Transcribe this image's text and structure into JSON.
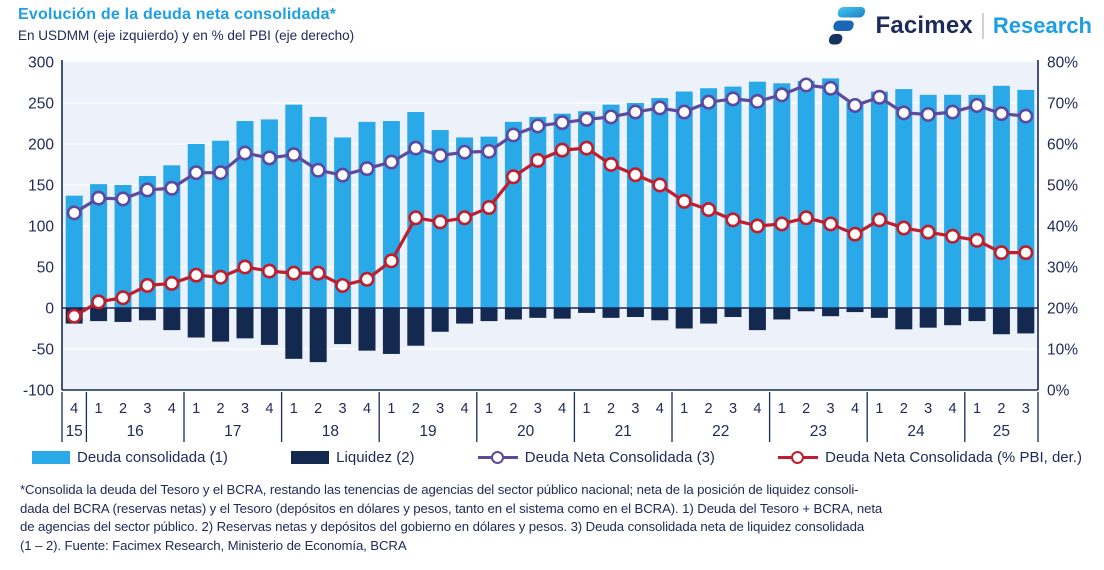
{
  "header": {
    "title": "Evolución de la deuda neta consolidada*",
    "subtitle": "En USDMM (eje izquierdo) y en % del PBI (eje derecho)",
    "brand": {
      "name": "Facimex",
      "division": "Research"
    }
  },
  "colors": {
    "bar_light_blue": "#29A9E8",
    "bar_navy": "#14294F",
    "line_purple": "#5B4AA0",
    "line_red": "#BE1E2D",
    "title_blue": "#1E9FE4",
    "text_navy": "#202A5B",
    "plot_background": "#EDF2FA",
    "gridline": "#FFFFFF",
    "axis_line": "#16295B"
  },
  "chart_data": {
    "type": "bar",
    "subtype": "combo bar + line, dual axis",
    "title": "Evolución de la deuda neta consolidada",
    "xlabel": "",
    "ylabel_left": "USDMM",
    "ylabel_right": "% del PBI",
    "grid": "horizontal white gridlines on light-blue plot background",
    "legend_position": "bottom",
    "left_axis": {
      "range": [
        -100,
        300
      ],
      "ticks": [
        300,
        250,
        200,
        150,
        100,
        50,
        0,
        -50,
        -100
      ]
    },
    "right_axis": {
      "range": [
        0,
        80
      ],
      "ticks": [
        "80%",
        "70%",
        "60%",
        "50%",
        "40%",
        "30%",
        "20%",
        "10%",
        "0%"
      ]
    },
    "quarter_labels": [
      "4",
      "1",
      "2",
      "3",
      "4",
      "1",
      "2",
      "3",
      "4",
      "1",
      "2",
      "3",
      "4",
      "1",
      "2",
      "3",
      "4",
      "1",
      "2",
      "3",
      "4",
      "1",
      "2",
      "3",
      "4",
      "1",
      "2",
      "3",
      "4",
      "1",
      "2",
      "3",
      "4",
      "1",
      "2",
      "3",
      "4",
      "1",
      "2",
      "3"
    ],
    "year_groups": [
      {
        "label": "15",
        "count": 1
      },
      {
        "label": "16",
        "count": 4
      },
      {
        "label": "17",
        "count": 4
      },
      {
        "label": "18",
        "count": 4
      },
      {
        "label": "19",
        "count": 4
      },
      {
        "label": "20",
        "count": 4
      },
      {
        "label": "21",
        "count": 4
      },
      {
        "label": "22",
        "count": 4
      },
      {
        "label": "23",
        "count": 4
      },
      {
        "label": "24",
        "count": 4
      },
      {
        "label": "25",
        "count": 3
      }
    ],
    "series": [
      {
        "name": "Deuda consolidada (1)",
        "type": "bar",
        "axis": "left",
        "values": [
          137,
          151,
          150,
          161,
          174,
          200,
          204,
          228,
          230,
          248,
          233,
          208,
          227,
          228,
          239,
          217,
          208,
          209,
          227,
          233,
          237,
          240,
          248,
          250,
          256,
          264,
          268,
          270,
          276,
          274,
          277,
          280,
          251,
          264,
          267,
          260,
          260,
          260,
          271,
          266
        ]
      },
      {
        "name": "Liquidez (2)",
        "type": "bar",
        "axis": "left",
        "values": [
          -19,
          -16,
          -17,
          -15,
          -27,
          -36,
          -41,
          -37,
          -45,
          -62,
          -66,
          -44,
          -52,
          -56,
          -46,
          -29,
          -19,
          -16,
          -14,
          -12,
          -13,
          -6,
          -12,
          -11,
          -15,
          -25,
          -19,
          -11,
          -27,
          -14,
          -4,
          -10,
          -5,
          -12,
          -26,
          -24,
          -21,
          -16,
          -32,
          -31
        ]
      },
      {
        "name": "Deuda Neta Consolidada (3)",
        "type": "line",
        "axis": "left",
        "values": [
          116,
          134,
          133,
          144,
          146,
          165,
          165,
          189,
          183,
          187,
          168,
          162,
          170,
          178,
          195,
          186,
          190,
          191,
          211,
          222,
          226,
          230,
          233,
          239,
          244,
          239,
          251,
          255,
          252,
          260,
          272,
          268,
          247,
          257,
          238,
          236,
          239,
          247,
          237,
          234
        ]
      },
      {
        "name": "Deuda Neta Consolidada (% PBI, der.)",
        "type": "line",
        "axis": "right",
        "values": [
          18,
          21.5,
          22.5,
          25.5,
          26,
          28,
          27.5,
          30,
          29,
          28.5,
          28.5,
          25.5,
          27,
          31.5,
          42,
          41,
          42,
          44.5,
          52,
          56,
          58.5,
          59,
          55,
          52.5,
          50,
          46,
          44,
          41.5,
          40,
          40.5,
          42,
          40.5,
          38,
          41.5,
          39.5,
          38.5,
          37.5,
          36.5,
          33.5,
          33.5
        ]
      }
    ]
  },
  "footnote": {
    "lines": [
      "*Consolida la deuda del Tesoro y el BCRA, restando las tenencias de agencias del sector público nacional; neta de la posición de liquidez consoli-",
      "dada del BCRA (reservas netas) y el Tesoro (depósitos en dólares y pesos, tanto en el sistema como en el BCRA). 1) Deuda del Tesoro + BCRA, neta",
      "de agencias del sector público. 2) Reservas netas y depósitos del gobierno en dólares y pesos. 3) Deuda consolidada neta de liquidez consolidada",
      "(1 – 2). Fuente: Facimex Research, Ministerio de Economía, BCRA"
    ]
  }
}
